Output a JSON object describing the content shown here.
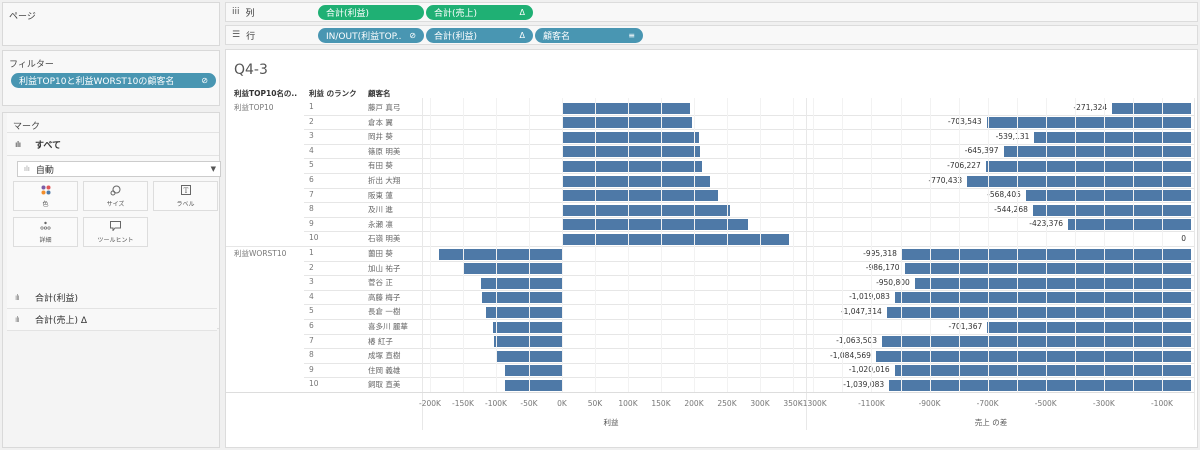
{
  "pages": {
    "title": "ページ"
  },
  "filters": {
    "title": "フィルター",
    "pill": "利益TOP10と利益WORST10の顧客名"
  },
  "marks": {
    "title": "マーク",
    "all_label": "すべて",
    "mark_type": "自動",
    "buttons": [
      {
        "label": "色",
        "icon": "color-icon"
      },
      {
        "label": "サイズ",
        "icon": "size-icon"
      },
      {
        "label": "ラベル",
        "icon": "label-icon"
      },
      {
        "label": "詳細",
        "icon": "detail-icon"
      },
      {
        "label": "ツールヒント",
        "icon": "tooltip-icon"
      }
    ],
    "measures": [
      {
        "label": "合計(利益)"
      },
      {
        "label": "合計(売上) Δ"
      }
    ]
  },
  "shelves": {
    "columns": {
      "label": "列",
      "pills": [
        {
          "label": "合計(利益)",
          "icon": ""
        },
        {
          "label": "合計(売上)",
          "icon": "Δ"
        }
      ]
    },
    "rows": {
      "label": "行",
      "pills": [
        {
          "label": "IN/OUT(利益TOP..",
          "icon": "⊘"
        },
        {
          "label": "合計(利益)",
          "icon": "Δ"
        },
        {
          "label": "顧客名",
          "icon": "≡"
        }
      ]
    }
  },
  "viz": {
    "title": "Q4-3",
    "headers": [
      "利益TOP10名の..",
      "利益 のランク",
      "顧客名"
    ],
    "groups": [
      "利益TOP10",
      "利益WORST10"
    ],
    "profit_axis": {
      "title": "利益",
      "ticks": [
        "-200K",
        "-150K",
        "-100K",
        "-50K",
        "0K",
        "50K",
        "100K",
        "150K",
        "200K",
        "250K",
        "300K",
        "350K"
      ]
    },
    "sales_axis": {
      "title": "売上 の差",
      "ticks": [
        "-1300K",
        "-1100K",
        "-900K",
        "-700K",
        "-500K",
        "-300K",
        "-100K"
      ]
    }
  },
  "chart_data": {
    "type": "bar",
    "orientation": "horizontal",
    "title": "Q4-3",
    "color": "#4e79a7",
    "rows": [
      {
        "group": "利益TOP10",
        "rank": "1",
        "customer": "藤戸 真弓",
        "profit_k": 194,
        "sales_diff": -271324,
        "sales_label": "-271,324"
      },
      {
        "group": "利益TOP10",
        "rank": "2",
        "customer": "倉本 翼",
        "profit_k": 197,
        "sales_diff": -703543,
        "sales_label": "-703,543"
      },
      {
        "group": "利益TOP10",
        "rank": "3",
        "customer": "岡井 葵",
        "profit_k": 208,
        "sales_diff": -539131,
        "sales_label": "-539,131"
      },
      {
        "group": "利益TOP10",
        "rank": "4",
        "customer": "篠原 明美",
        "profit_k": 209,
        "sales_diff": -645397,
        "sales_label": "-645,397"
      },
      {
        "group": "利益TOP10",
        "rank": "5",
        "customer": "有田 葵",
        "profit_k": 212,
        "sales_diff": -706227,
        "sales_label": "-706,227"
      },
      {
        "group": "利益TOP10",
        "rank": "6",
        "customer": "折出 大翔",
        "profit_k": 224,
        "sales_diff": -770433,
        "sales_label": "-770,433"
      },
      {
        "group": "利益TOP10",
        "rank": "7",
        "customer": "阪東 蓮",
        "profit_k": 236,
        "sales_diff": -568405,
        "sales_label": "-568,405"
      },
      {
        "group": "利益TOP10",
        "rank": "8",
        "customer": "及川 進",
        "profit_k": 255,
        "sales_diff": -544268,
        "sales_label": "-544,268"
      },
      {
        "group": "利益TOP10",
        "rank": "9",
        "customer": "永瀬 凛",
        "profit_k": 282,
        "sales_diff": -423376,
        "sales_label": "-423,376"
      },
      {
        "group": "利益TOP10",
        "rank": "10",
        "customer": "石嶺 明美",
        "profit_k": 344,
        "sales_diff": 0,
        "sales_label": "0"
      },
      {
        "group": "利益WORST10",
        "rank": "1",
        "customer": "薗田 葵",
        "profit_k": -186,
        "sales_diff": -995318,
        "sales_label": "-995,318"
      },
      {
        "group": "利益WORST10",
        "rank": "2",
        "customer": "加山 祐子",
        "profit_k": -150,
        "sales_diff": -986170,
        "sales_label": "-986,170"
      },
      {
        "group": "利益WORST10",
        "rank": "3",
        "customer": "菅谷 正",
        "profit_k": -123,
        "sales_diff": -950800,
        "sales_label": "-950,800"
      },
      {
        "group": "利益WORST10",
        "rank": "4",
        "customer": "高藤 梅子",
        "profit_k": -121,
        "sales_diff": -1019083,
        "sales_label": "-1,019,083"
      },
      {
        "group": "利益WORST10",
        "rank": "5",
        "customer": "長倉 一樹",
        "profit_k": -115,
        "sales_diff": -1047314,
        "sales_label": "-1,047,314"
      },
      {
        "group": "利益WORST10",
        "rank": "6",
        "customer": "喜多川 麗華",
        "profit_k": -105,
        "sales_diff": -701367,
        "sales_label": "-701,367"
      },
      {
        "group": "利益WORST10",
        "rank": "7",
        "customer": "椿 紅子",
        "profit_k": -103,
        "sales_diff": -1063503,
        "sales_label": "-1,063,503"
      },
      {
        "group": "利益WORST10",
        "rank": "8",
        "customer": "成塚 直樹",
        "profit_k": -99,
        "sales_diff": -1084569,
        "sales_label": "-1,084,569"
      },
      {
        "group": "利益WORST10",
        "rank": "9",
        "customer": "住岡 義雄",
        "profit_k": -87,
        "sales_diff": -1020016,
        "sales_label": "-1,020,016"
      },
      {
        "group": "利益WORST10",
        "rank": "10",
        "customer": "飼取 直美",
        "profit_k": -87,
        "sales_diff": -1039083,
        "sales_label": "-1,039,083"
      }
    ],
    "panels": [
      {
        "xlabel": "利益",
        "xlim": [
          -210000,
          360000
        ],
        "ticks": [
          "-200K",
          "-150K",
          "-100K",
          "-50K",
          "0K",
          "50K",
          "100K",
          "150K",
          "200K",
          "250K",
          "300K",
          "350K"
        ]
      },
      {
        "xlabel": "売上 の差",
        "xlim": [
          -1360000,
          0
        ],
        "ticks": [
          "-1300K",
          "-1100K",
          "-900K",
          "-700K",
          "-500K",
          "-300K",
          "-100K"
        ]
      }
    ],
    "grid": true
  }
}
